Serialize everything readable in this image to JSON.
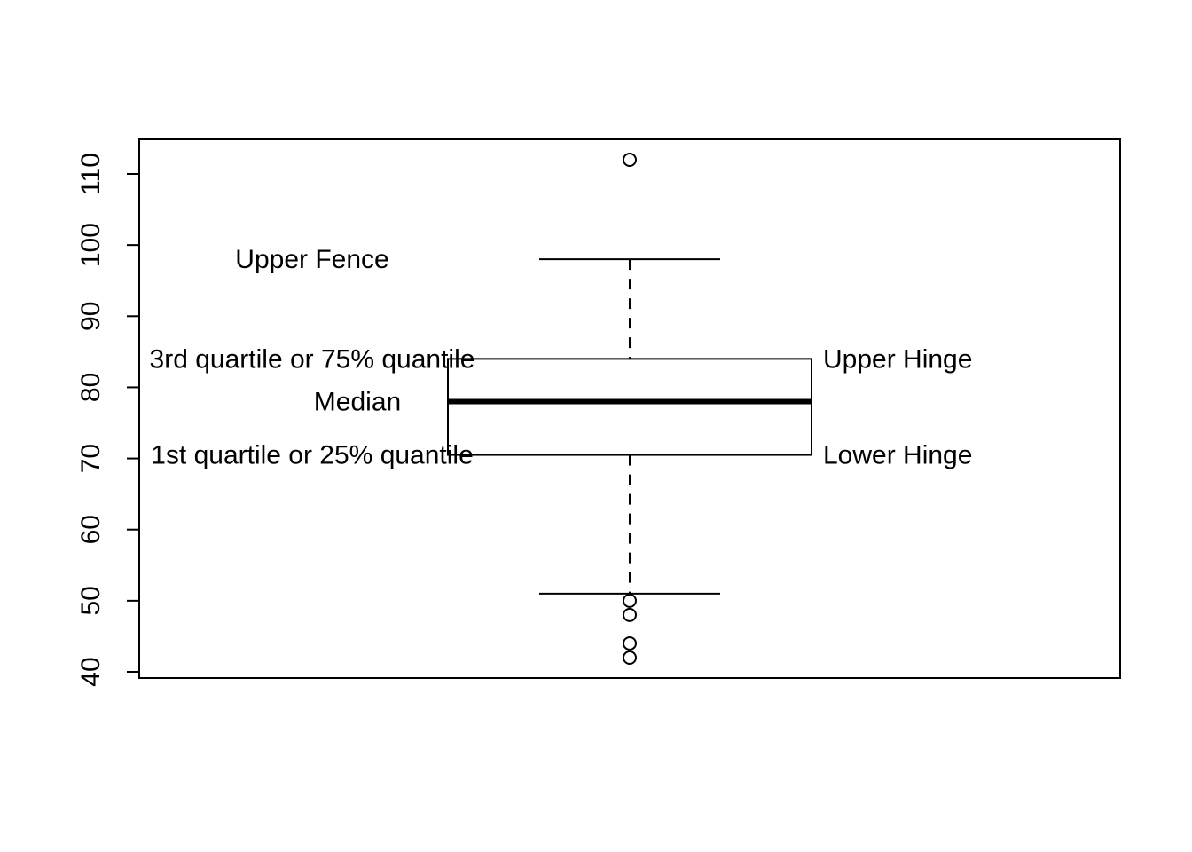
{
  "chart_data": {
    "type": "box",
    "title": "",
    "xlabel": "",
    "ylabel": "",
    "ylim": [
      39.5,
      115
    ],
    "yticks": [
      40,
      50,
      60,
      70,
      80,
      90,
      100,
      110
    ],
    "grid": false,
    "legend": "none",
    "box": {
      "lower_whisker": 51,
      "q1": 70.5,
      "median": 78,
      "q3": 84,
      "upper_whisker": 98,
      "outliers": [
        112,
        50,
        48,
        44,
        42
      ]
    },
    "annotations": [
      {
        "id": "upper-fence",
        "text": "Upper Fence",
        "y": 98,
        "side": "left"
      },
      {
        "id": "q3",
        "text": "3rd quartile or 75% quantile",
        "y": 84,
        "side": "left"
      },
      {
        "id": "median",
        "text": "Median",
        "y": 78,
        "side": "left"
      },
      {
        "id": "q1",
        "text": "1st quartile or 25% quantile",
        "y": 70.5,
        "side": "left"
      },
      {
        "id": "upper-hinge",
        "text": "Upper Hinge",
        "y": 84,
        "side": "right"
      },
      {
        "id": "lower-hinge",
        "text": "Lower Hinge",
        "y": 70.5,
        "side": "right"
      }
    ]
  }
}
